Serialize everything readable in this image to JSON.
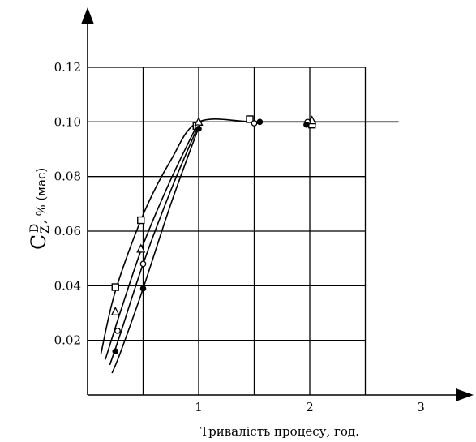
{
  "chart_data": {
    "type": "line",
    "title": "",
    "xlabel": "Тривалість процесу, год.",
    "ylabel": {
      "symbol": "C",
      "superscript": "D",
      "subscript": "Z",
      "unit": ", % (мас)"
    },
    "xlim": [
      0,
      3.5
    ],
    "ylim": [
      0,
      0.13
    ],
    "x_ticks": [
      "1",
      "2",
      "3"
    ],
    "x_tick_values": [
      1,
      2,
      3
    ],
    "y_ticks": [
      "0.02",
      "0.04",
      "0.06",
      "0.08",
      "0.10",
      "0.12"
    ],
    "y_tick_values": [
      0.02,
      0.04,
      0.06,
      0.08,
      0.1,
      0.12
    ],
    "grid_x": [
      0.5,
      1,
      1.5,
      2,
      2.5
    ],
    "grid_y": [
      0.02,
      0.04,
      0.06,
      0.08,
      0.1,
      0.12
    ],
    "grid": true,
    "legend": "none",
    "series": [
      {
        "marker": "square",
        "curve": [
          [
            0.12,
            0.015
          ],
          [
            0.25,
            0.038
          ],
          [
            0.5,
            0.066
          ],
          [
            0.75,
            0.086
          ],
          [
            1.0,
            0.1
          ],
          [
            1.5,
            0.1
          ],
          [
            2.0,
            0.1
          ],
          [
            2.8,
            0.1
          ]
        ],
        "points": [
          [
            0.25,
            0.0395
          ],
          [
            0.48,
            0.064
          ],
          [
            0.98,
            0.0985
          ],
          [
            1.46,
            0.101
          ],
          [
            2.02,
            0.099
          ]
        ]
      },
      {
        "marker": "triangle",
        "curve": [
          [
            0.16,
            0.013
          ],
          [
            0.3,
            0.031
          ],
          [
            0.5,
            0.055
          ],
          [
            0.75,
            0.079
          ],
          [
            1.0,
            0.1
          ]
        ],
        "points": [
          [
            0.25,
            0.0305
          ],
          [
            0.48,
            0.0535
          ],
          [
            1.0,
            0.1
          ],
          [
            2.02,
            0.1005
          ]
        ]
      },
      {
        "marker": "open-circle",
        "curve": [
          [
            0.2,
            0.011
          ],
          [
            0.3,
            0.023
          ],
          [
            0.5,
            0.048
          ],
          [
            0.75,
            0.075
          ],
          [
            1.0,
            0.099
          ]
        ],
        "points": [
          [
            0.27,
            0.0235
          ],
          [
            0.5,
            0.048
          ],
          [
            0.99,
            0.098
          ],
          [
            1.5,
            0.0995
          ],
          [
            1.98,
            0.1
          ]
        ]
      },
      {
        "marker": "filled-circle",
        "curve": [
          [
            0.22,
            0.008
          ],
          [
            0.3,
            0.016
          ],
          [
            0.5,
            0.039
          ],
          [
            0.75,
            0.07
          ],
          [
            1.0,
            0.098
          ]
        ],
        "points": [
          [
            0.25,
            0.016
          ],
          [
            0.5,
            0.039
          ],
          [
            1.0,
            0.0975
          ],
          [
            1.55,
            0.1
          ],
          [
            1.97,
            0.099
          ]
        ]
      }
    ]
  }
}
